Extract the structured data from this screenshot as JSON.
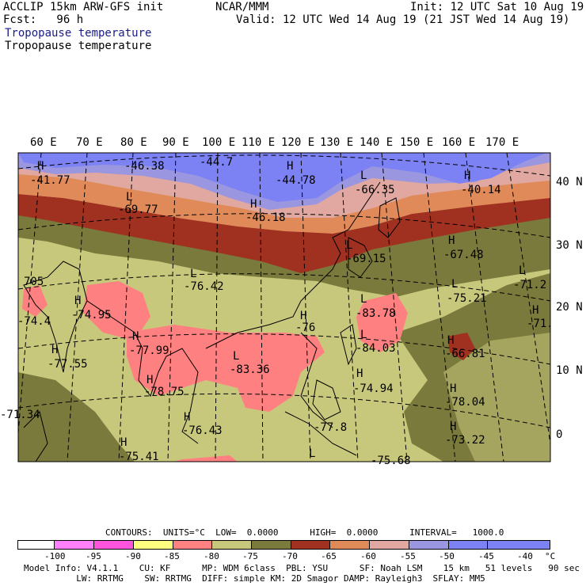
{
  "header": {
    "model": "ACCLIP 15km ARW-GFS init",
    "fcst": "Fcst:   96 h",
    "center": "NCAR/MMM",
    "init": "Init: 12 UTC Sat 10 Aug 19",
    "valid": "Valid: 12 UTC Wed 14 Aug 19 (21 JST Wed 14 Aug 19)",
    "title1": "Tropopause temperature",
    "title2": "Tropopause temperature"
  },
  "lon_labels": [
    "60 E",
    "70 E",
    "80 E",
    "90 E",
    "100 E",
    "110 E",
    "120 E",
    "130 E",
    "140 E",
    "150 E",
    "160 E",
    "170 E"
  ],
  "lat_labels": [
    "40 N",
    "30 N",
    "20 N",
    "10 N",
    "0"
  ],
  "extrema": [
    {
      "type": "H",
      "value": "-41.77"
    },
    {
      "type": "H",
      "value": "-46.38"
    },
    {
      "type": "H",
      "value": "-44.7"
    },
    {
      "type": "H",
      "value": "-44.78"
    },
    {
      "type": "L",
      "value": "-69.77"
    },
    {
      "type": "H",
      "value": "-46.18"
    },
    {
      "type": "L",
      "value": "-66.35"
    },
    {
      "type": "H",
      "value": "-40.14"
    },
    {
      "type": "L",
      "value": "-69.15"
    },
    {
      "type": "H",
      "value": "-67.48"
    },
    {
      "type": "L",
      "value": "-76.42"
    },
    {
      "type": "L",
      "value": "-71.2"
    },
    {
      "type": "H",
      "value": "-74.95"
    },
    {
      "type": "L",
      "value": "-75.21"
    },
    {
      "type": "L",
      "value": "-83.78"
    },
    {
      "type": "H",
      "value": "-76"
    },
    {
      "type": "H",
      "value": "-71."
    },
    {
      "type": "L",
      "value": "-84.03"
    },
    {
      "type": "H",
      "value": "-77.99"
    },
    {
      "type": "H",
      "value": "-77.55"
    },
    {
      "type": "H",
      "value": "-66.81"
    },
    {
      "type": "L",
      "value": "-83.36"
    },
    {
      "type": "H",
      "value": "-74.94"
    },
    {
      "type": "H",
      "value": "-78.75"
    },
    {
      "type": "H",
      "value": "-78.04"
    },
    {
      "type": "H",
      "value": "-76.43"
    },
    {
      "type": "H",
      "value": "-77.8"
    },
    {
      "type": "H",
      "value": "-73.22"
    },
    {
      "type": "H",
      "value": "-75.41"
    },
    {
      "type": "L",
      "value": "-75.68"
    },
    {
      "type": "",
      "value": "-71.34"
    },
    {
      "type": "",
      "value": "-74.4"
    },
    {
      "type": "",
      "value": "705"
    }
  ],
  "contours": {
    "text": "CONTOURS:  UNITS=°C  LOW=  0.0000      HIGH=  0.0000      INTERVAL=   1000.0"
  },
  "legend": {
    "colors": [
      "#ffffff",
      "#ff80ff",
      "#ff55dd",
      "#ffff80",
      "#ff8080",
      "#c8c87d",
      "#7a7a3c",
      "#a03020",
      "#e08a5a",
      "#e0a8a0",
      "#9a96e0",
      "#7c82f4",
      "#7c82f4"
    ],
    "labels": [
      "-100",
      "-95",
      "-90",
      "-85",
      "-80",
      "-75",
      "-70",
      "-65",
      "-60",
      "-55",
      "-50",
      "-45",
      "-40"
    ],
    "unit": "°C"
  },
  "footer": {
    "line1": "Model Info: V4.1.1    CU: KF      MP: WDM 6class  PBL: YSU      SF: Noah LSM    15 km   51 levels   90 sec",
    "line2": "          LW: RRTMG    SW: RRTMG  DIFF: simple KM: 2D Smagor DAMP: Rayleigh3  SFLAY: MM5"
  }
}
